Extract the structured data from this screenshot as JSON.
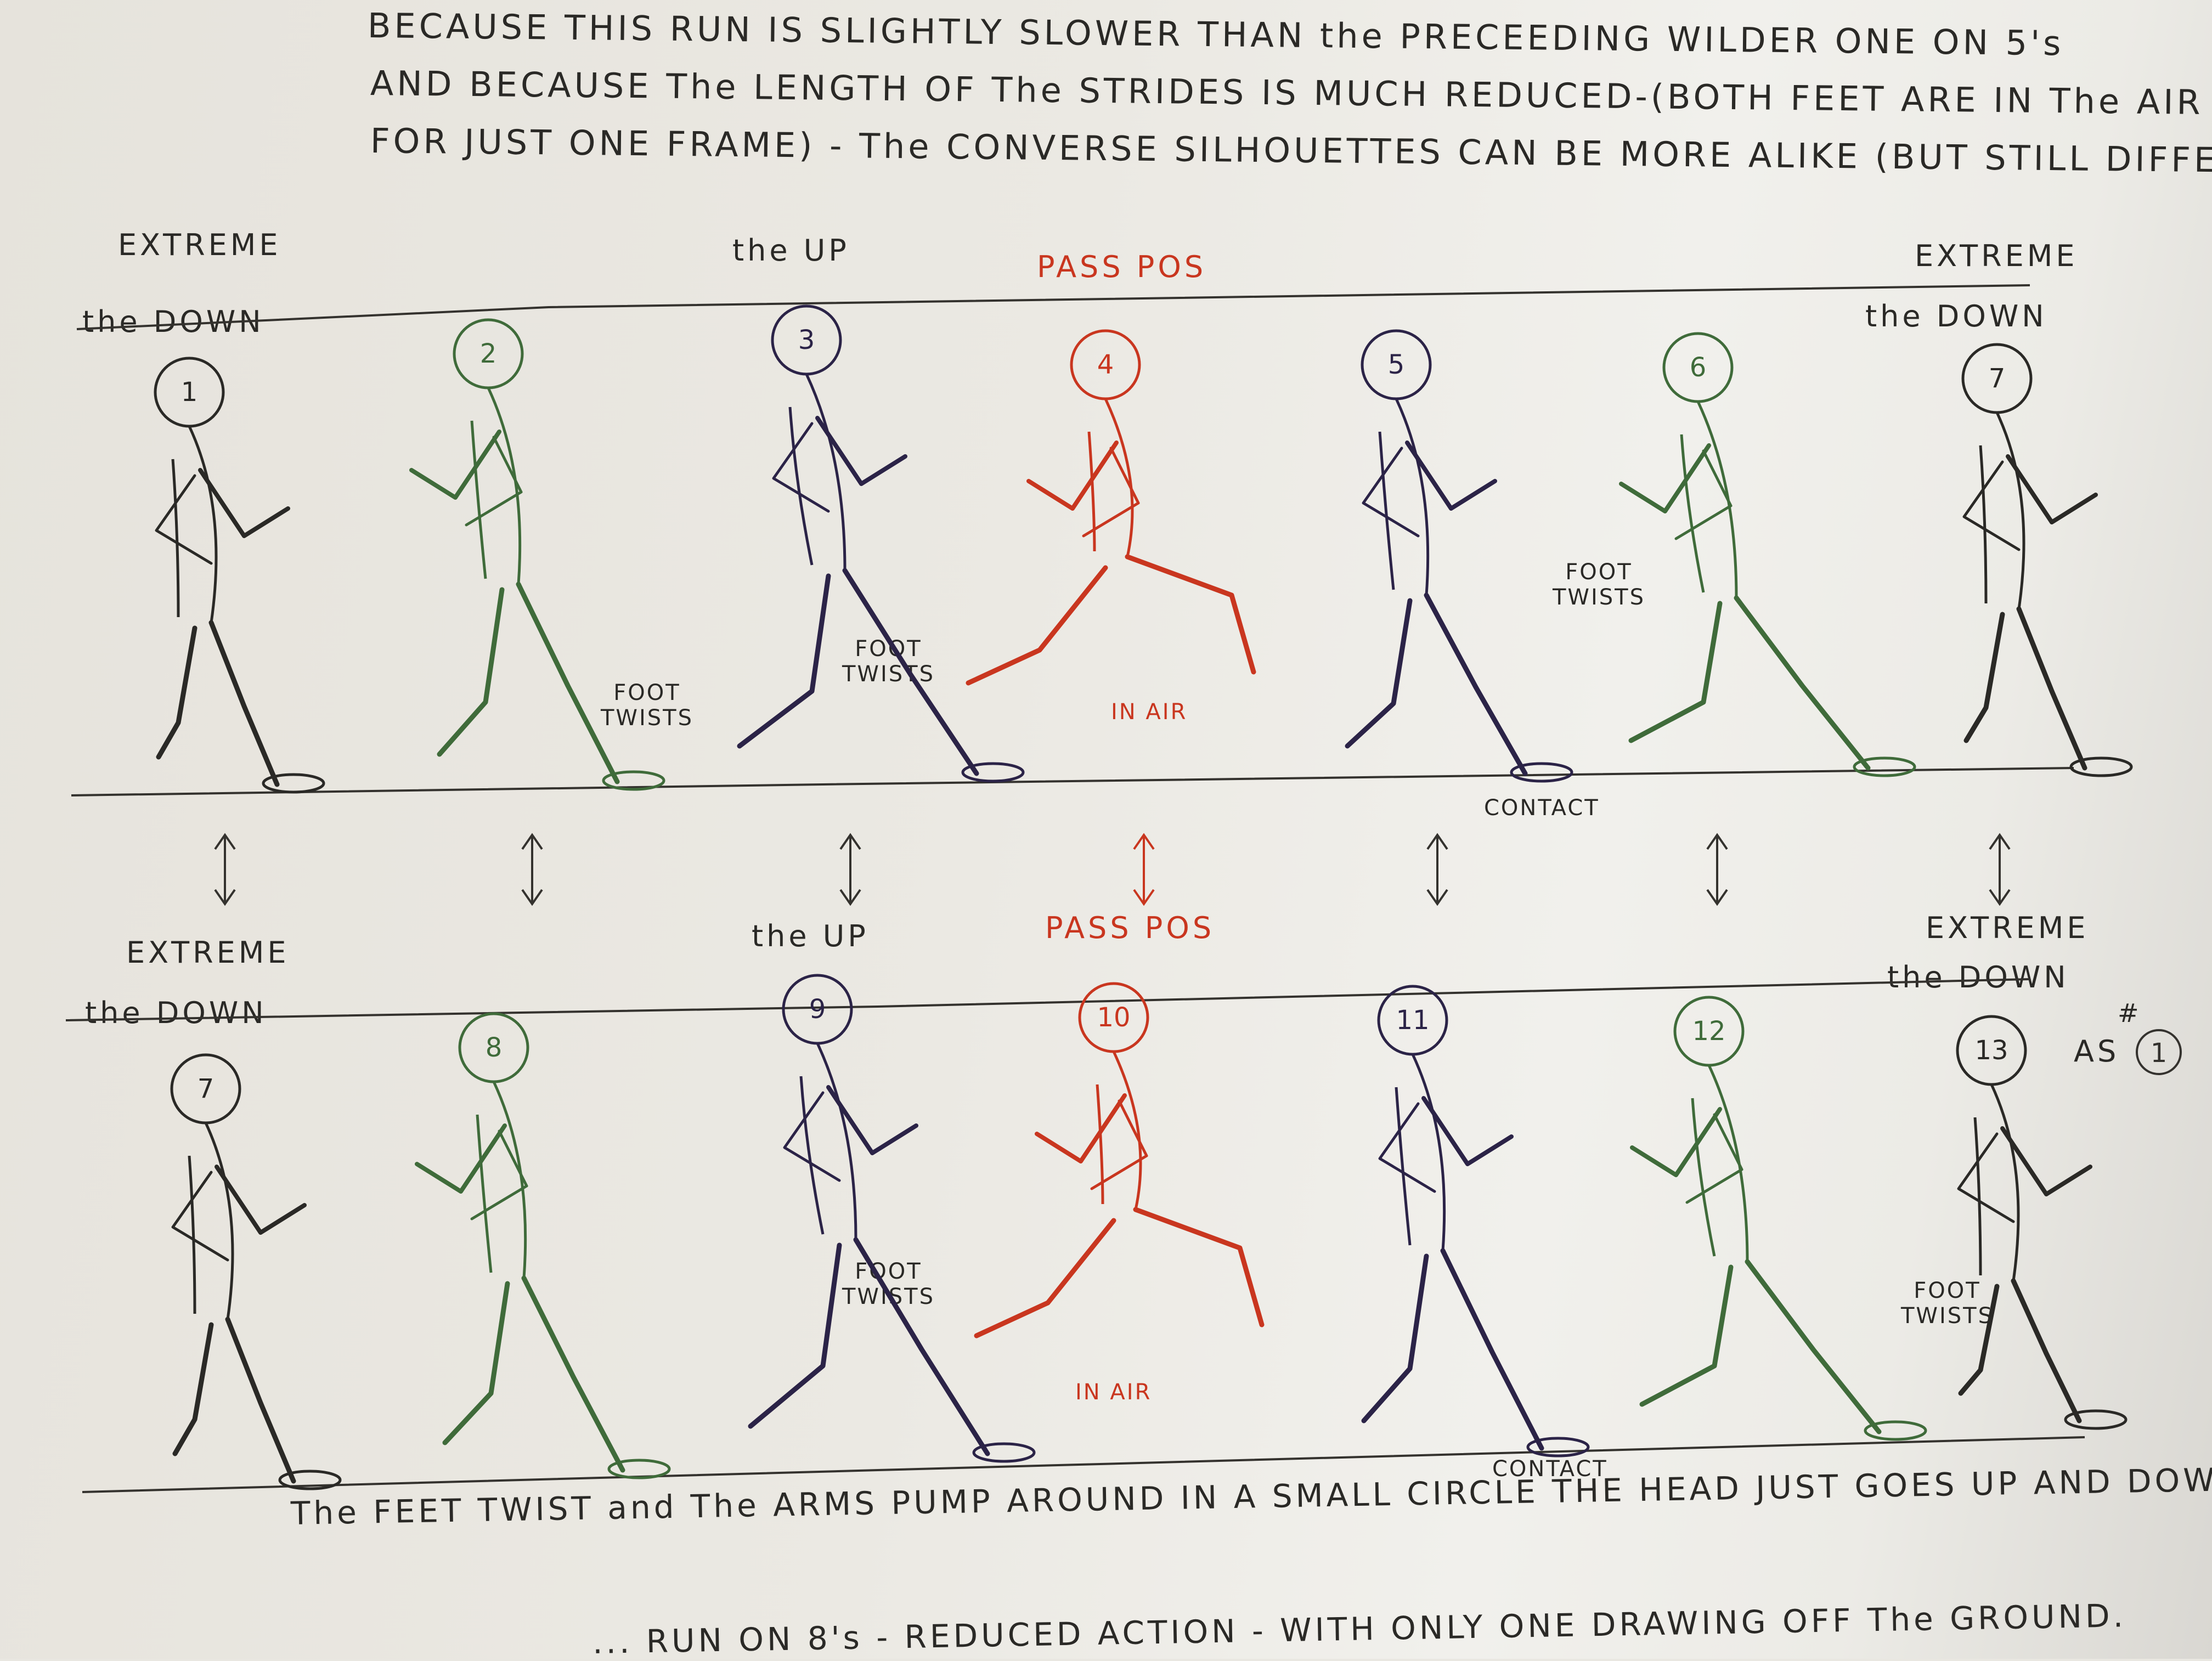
{
  "intro": {
    "line1": "BECAUSE THIS RUN IS SLIGHTLY SLOWER THAN the PRECEEDING WILDER ONE ON 5's",
    "line2": "AND BECAUSE The LENGTH OF The STRIDES IS MUCH REDUCED-(BOTH FEET ARE IN The AIR",
    "line3": "FOR JUST ONE FRAME) - The CONVERSE SILHOUETTES CAN BE MORE ALIKE (BUT STILL DIFFERENT)"
  },
  "row1": {
    "extreme_left": "EXTREME",
    "down_left": "the DOWN",
    "up": "the UP",
    "pass": "PASS POS",
    "extreme_right": "EXTREME",
    "down_right": "the DOWN",
    "frames": [
      "1",
      "2",
      "3",
      "4",
      "5",
      "6",
      "7"
    ],
    "notes": {
      "foot_twists_a": "FOOT\nTWISTS",
      "foot_twists_b": "FOOT\nTWISTS",
      "in_air": "IN AIR",
      "contact": "CONTACT",
      "foot_twists_c": "FOOT\nTWISTS"
    }
  },
  "row2": {
    "extreme_left": "EXTREME",
    "down_left": "the DOWN",
    "up": "the UP",
    "pass": "PASS POS",
    "extreme_right": "EXTREME",
    "down_right": "the DOWN",
    "frames": [
      "7",
      "8",
      "9",
      "10",
      "11",
      "12",
      "13"
    ],
    "as_note": "AS",
    "as_ref": "#",
    "as_circle": "1",
    "notes": {
      "foot_twists_a": "FOOT\nTWISTS",
      "in_air": "IN AIR",
      "contact": "CONTACT",
      "foot_twists_b": "FOOT\nTWISTS"
    }
  },
  "footer": {
    "line1": "The FEET TWIST and The ARMS PUMP AROUND IN A SMALL CIRCLE THE HEAD JUST GOES UP AND DOWN.",
    "line2": "... RUN ON 8's - REDUCED ACTION - WITH ONLY ONE DRAWING OFF The GROUND."
  },
  "colors": {
    "ink": "#2a2926",
    "green": "#3f6b3a",
    "navy": "#2b2347",
    "red": "#c9361f"
  }
}
